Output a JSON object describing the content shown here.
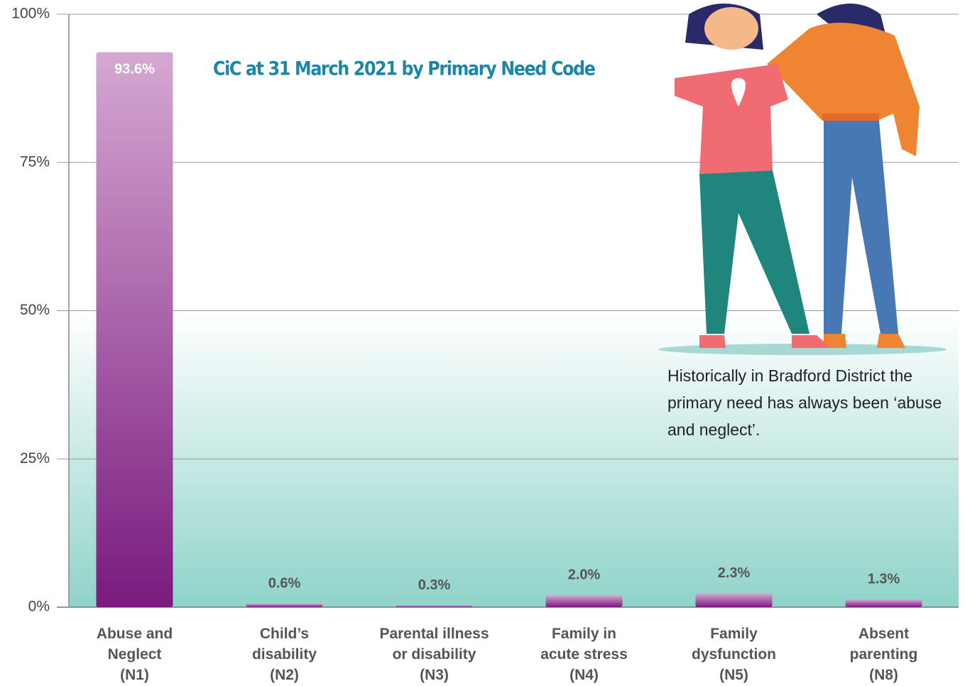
{
  "chart_data": {
    "type": "bar",
    "title": "CiC at 31 March 2021 by Primary Need Code",
    "annotation": "Historically in Bradford District the primary need has always been ‘abuse and neglect’.",
    "categories": [
      "Abuse and\nNeglect\n(N1)",
      "Child’s\ndisability\n(N2)",
      "Parental illness\nor disability\n(N3)",
      "Family in\nacute stress\n(N4)",
      "Family\ndysfunction\n(N5)",
      "Absent\nparenting\n(N8)"
    ],
    "values": [
      93.6,
      0.6,
      0.3,
      2.0,
      2.3,
      1.3
    ],
    "value_labels": [
      "93.6%",
      "0.6%",
      "0.3%",
      "2.0%",
      "2.3%",
      "1.3%"
    ],
    "colors": [
      "#d5a8d2",
      "#7a1a7e"
    ],
    "ylim": [
      0,
      100
    ],
    "yticks": [
      {
        "value": 0,
        "label": "0%"
      },
      {
        "value": 25,
        "label": "25%"
      },
      {
        "value": 50,
        "label": "50%"
      },
      {
        "value": 75,
        "label": "75%"
      },
      {
        "value": 100,
        "label": "100%"
      }
    ],
    "grid": true
  }
}
